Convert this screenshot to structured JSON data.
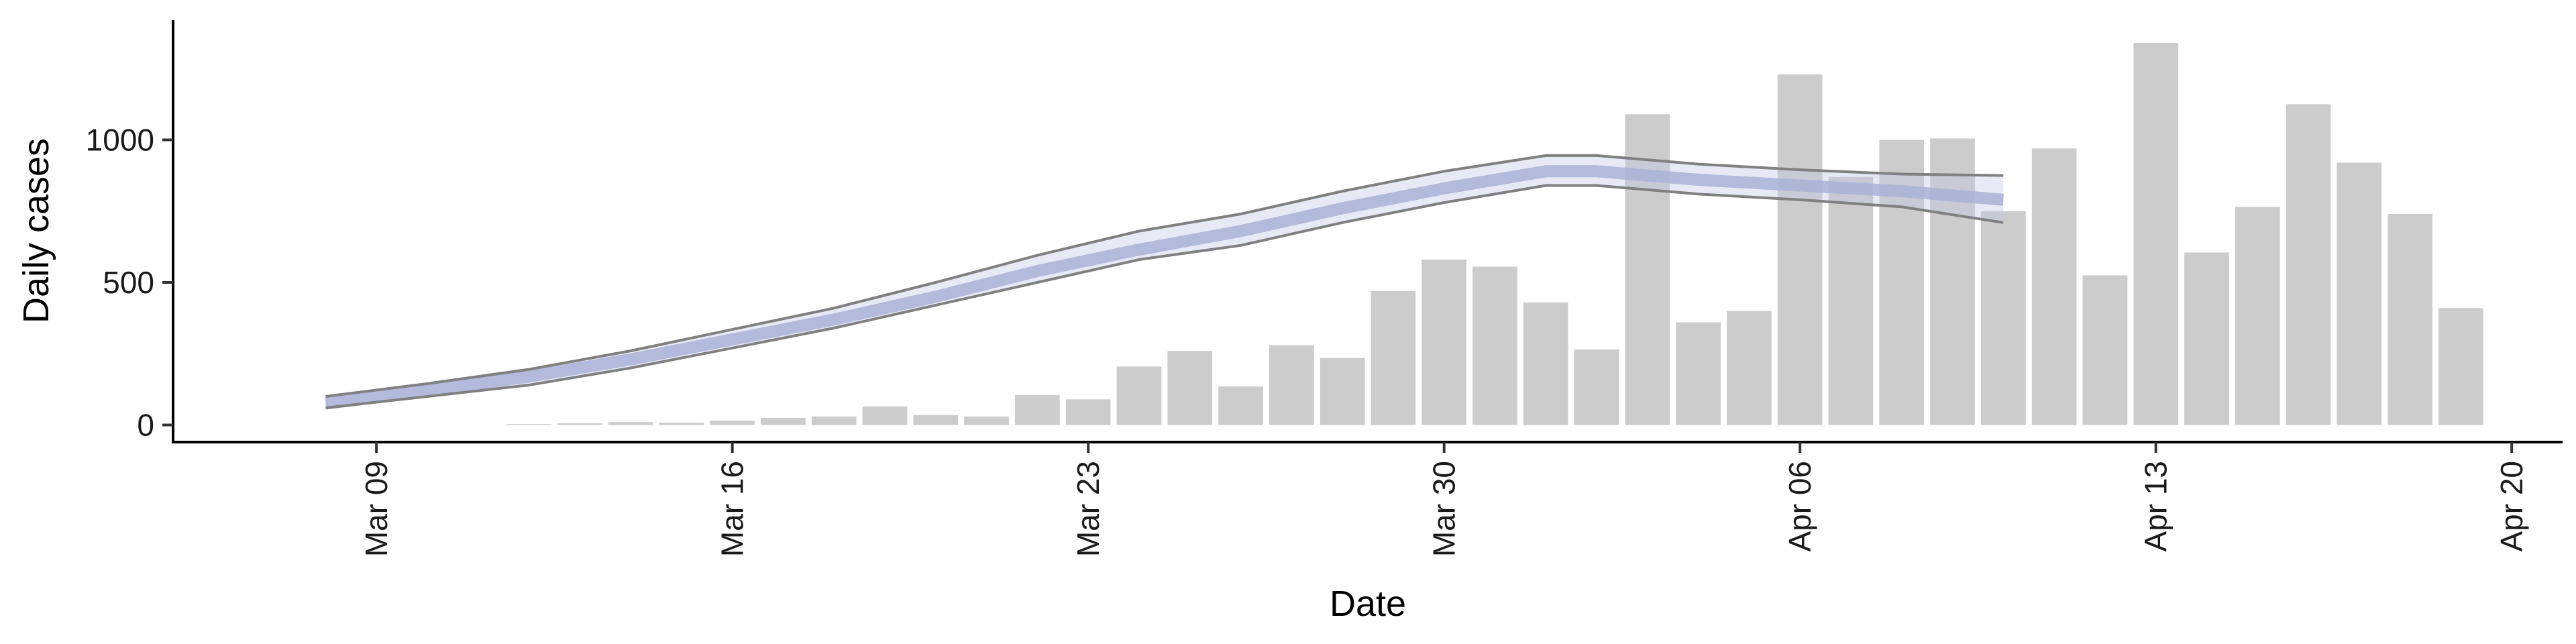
{
  "chart_data": {
    "type": "bar",
    "xlabel": "Date",
    "ylabel": "Daily cases",
    "x_tick_labels": [
      "Mar 09",
      "Mar 16",
      "Mar 23",
      "Mar 30",
      "Apr 06",
      "Apr 13",
      "Apr 20"
    ],
    "x_tick_dates": [
      "2020-03-09",
      "2020-03-16",
      "2020-03-23",
      "2020-03-30",
      "2020-04-06",
      "2020-04-13",
      "2020-04-20"
    ],
    "y_ticks": [
      0,
      500,
      1000
    ],
    "y_tick_labels": [
      "0",
      "500",
      "1000"
    ],
    "xlim": [
      "2020-03-05",
      "2020-04-21"
    ],
    "ylim": [
      -60,
      1420
    ],
    "grid": false,
    "legend": "none",
    "bars": {
      "color": "#cccccc",
      "dates": [
        "2020-03-12",
        "2020-03-13",
        "2020-03-14",
        "2020-03-15",
        "2020-03-16",
        "2020-03-17",
        "2020-03-18",
        "2020-03-19",
        "2020-03-20",
        "2020-03-21",
        "2020-03-22",
        "2020-03-23",
        "2020-03-24",
        "2020-03-25",
        "2020-03-26",
        "2020-03-27",
        "2020-03-28",
        "2020-03-29",
        "2020-03-30",
        "2020-03-31",
        "2020-04-01",
        "2020-04-02",
        "2020-04-03",
        "2020-04-04",
        "2020-04-05",
        "2020-04-06",
        "2020-04-07",
        "2020-04-08",
        "2020-04-09",
        "2020-04-10",
        "2020-04-11",
        "2020-04-12",
        "2020-04-13",
        "2020-04-14",
        "2020-04-15",
        "2020-04-16",
        "2020-04-17",
        "2020-04-18",
        "2020-04-19"
      ],
      "values": [
        3,
        6,
        10,
        8,
        15,
        25,
        30,
        65,
        35,
        30,
        105,
        90,
        205,
        260,
        135,
        280,
        235,
        470,
        580,
        555,
        430,
        265,
        1090,
        360,
        400,
        1230,
        870,
        1000,
        1005,
        750,
        970,
        525,
        1340,
        605,
        765,
        1125,
        920,
        740,
        410
      ]
    },
    "estimate": {
      "line_color": "#808080",
      "band_outer_color": "#c4cae6",
      "band_inner_color": "#a9b1d6",
      "dates": [
        "2020-03-08",
        "2020-03-10",
        "2020-03-12",
        "2020-03-14",
        "2020-03-16",
        "2020-03-18",
        "2020-03-20",
        "2020-03-22",
        "2020-03-24",
        "2020-03-26",
        "2020-03-28",
        "2020-03-30",
        "2020-04-01",
        "2020-04-02",
        "2020-04-04",
        "2020-04-06",
        "2020-04-08",
        "2020-04-10"
      ],
      "median": [
        75,
        120,
        170,
        230,
        300,
        370,
        450,
        540,
        615,
        680,
        760,
        830,
        890,
        890,
        860,
        840,
        820,
        790
      ],
      "upper": [
        100,
        145,
        195,
        260,
        335,
        410,
        500,
        595,
        680,
        740,
        820,
        890,
        945,
        945,
        915,
        895,
        880,
        875
      ],
      "lower": [
        60,
        100,
        140,
        200,
        270,
        340,
        420,
        500,
        580,
        630,
        710,
        780,
        840,
        840,
        810,
        790,
        765,
        710
      ]
    }
  }
}
